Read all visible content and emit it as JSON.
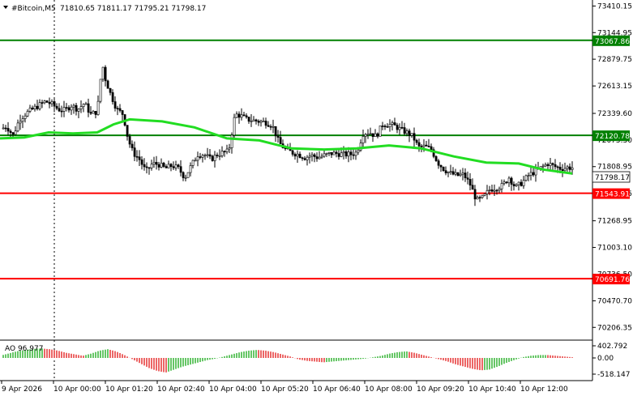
{
  "header": {
    "symbol": "#Bitcoin,M5",
    "ohlc": "71810.65 71811.17 71795.21 71798.17"
  },
  "colors": {
    "support": "#ff0000",
    "resistance": "#008000",
    "ma": "#22dd22",
    "grid": "#c8c8c8"
  },
  "levels": [
    {
      "name": "level-73067",
      "value": 73067.86,
      "label": "73067.86",
      "color": "#008000"
    },
    {
      "name": "level-72120",
      "value": 72120.78,
      "label": "72120.78",
      "color": "#008000"
    },
    {
      "name": "level-71543",
      "value": 71543.91,
      "label": "71543.91",
      "color": "#ff0000"
    },
    {
      "name": "level-70691",
      "value": 70691.76,
      "label": "70691.76",
      "color": "#ff0000"
    }
  ],
  "current_price": {
    "value": 71798.17,
    "label": "71798.17"
  },
  "ao": {
    "label": "AO 96.977",
    "ticks": [
      "402.792",
      "0.00",
      "-518.147"
    ]
  },
  "chart_data": {
    "type": "candlestick",
    "title": "#Bitcoin,M5",
    "y_ticks": [
      "73410.15",
      "73144.95",
      "72879.75",
      "72613.15",
      "72339.60",
      "72075.30",
      "71808.95",
      "71540.15",
      "71268.95",
      "71003.10",
      "70736.50",
      "70470.70",
      "70206.35"
    ],
    "ylim": [
      70160,
      73470
    ],
    "x_ticks": [
      "9 Apr 2026",
      "10 Apr 00:00",
      "10 Apr 01:20",
      "10 Apr 02:40",
      "10 Apr 04:00",
      "10 Apr 05:20",
      "10 Apr 06:40",
      "10 Apr 08:00",
      "10 Apr 09:20",
      "10 Apr 10:40",
      "10 Apr 12:00"
    ],
    "close_path": [
      [
        0,
        72180
      ],
      [
        8,
        72210
      ],
      [
        16,
        72120
      ],
      [
        24,
        72280
      ],
      [
        32,
        72340
      ],
      [
        40,
        72380
      ],
      [
        48,
        72420
      ],
      [
        56,
        72460
      ],
      [
        64,
        72430
      ],
      [
        72,
        72380
      ],
      [
        80,
        72370
      ],
      [
        88,
        72420
      ],
      [
        96,
        72380
      ],
      [
        104,
        72440
      ],
      [
        112,
        72330
      ],
      [
        120,
        72360
      ],
      [
        126,
        72840
      ],
      [
        130,
        72680
      ],
      [
        136,
        72540
      ],
      [
        144,
        72380
      ],
      [
        152,
        72330
      ],
      [
        158,
        72080
      ],
      [
        164,
        71950
      ],
      [
        172,
        71880
      ],
      [
        180,
        71760
      ],
      [
        188,
        71840
      ],
      [
        196,
        71830
      ],
      [
        204,
        71790
      ],
      [
        212,
        71820
      ],
      [
        220,
        71790
      ],
      [
        228,
        71700
      ],
      [
        236,
        71820
      ],
      [
        244,
        71930
      ],
      [
        252,
        71930
      ],
      [
        260,
        71880
      ],
      [
        268,
        71930
      ],
      [
        276,
        71950
      ],
      [
        282,
        71960
      ],
      [
        290,
        72330
      ],
      [
        296,
        72320
      ],
      [
        304,
        72280
      ],
      [
        312,
        72270
      ],
      [
        320,
        72260
      ],
      [
        328,
        72250
      ],
      [
        336,
        72220
      ],
      [
        344,
        72050
      ],
      [
        352,
        71980
      ],
      [
        360,
        71950
      ],
      [
        368,
        71930
      ],
      [
        376,
        71900
      ],
      [
        384,
        71920
      ],
      [
        392,
        71900
      ],
      [
        400,
        71920
      ],
      [
        408,
        71940
      ],
      [
        416,
        71940
      ],
      [
        424,
        71930
      ],
      [
        432,
        71930
      ],
      [
        440,
        71950
      ],
      [
        448,
        72140
      ],
      [
        456,
        72150
      ],
      [
        464,
        72110
      ],
      [
        472,
        72230
      ],
      [
        480,
        72230
      ],
      [
        488,
        72210
      ],
      [
        496,
        72170
      ],
      [
        504,
        72140
      ],
      [
        510,
        72100
      ],
      [
        516,
        72000
      ],
      [
        524,
        72010
      ],
      [
        532,
        71980
      ],
      [
        540,
        71850
      ],
      [
        548,
        71780
      ],
      [
        556,
        71740
      ],
      [
        564,
        71720
      ],
      [
        572,
        71730
      ],
      [
        580,
        71630
      ],
      [
        588,
        71470
      ],
      [
        596,
        71500
      ],
      [
        604,
        71580
      ],
      [
        612,
        71600
      ],
      [
        620,
        71620
      ],
      [
        628,
        71700
      ],
      [
        636,
        71600
      ],
      [
        644,
        71650
      ],
      [
        652,
        71720
      ],
      [
        660,
        71760
      ],
      [
        668,
        71800
      ],
      [
        676,
        71840
      ],
      [
        684,
        71810
      ],
      [
        692,
        71790
      ],
      [
        700,
        71800
      ],
      [
        706,
        71798
      ]
    ],
    "ma_path": [
      [
        0,
        72090
      ],
      [
        30,
        72100
      ],
      [
        60,
        72150
      ],
      [
        90,
        72140
      ],
      [
        120,
        72150
      ],
      [
        140,
        72230
      ],
      [
        160,
        72280
      ],
      [
        200,
        72260
      ],
      [
        240,
        72200
      ],
      [
        280,
        72090
      ],
      [
        320,
        72070
      ],
      [
        340,
        72030
      ],
      [
        360,
        71990
      ],
      [
        400,
        71980
      ],
      [
        440,
        71990
      ],
      [
        480,
        72020
      ],
      [
        520,
        71990
      ],
      [
        560,
        71910
      ],
      [
        600,
        71850
      ],
      [
        640,
        71840
      ],
      [
        670,
        71780
      ],
      [
        706,
        71740
      ]
    ],
    "ao_values": [
      0.15,
      0.3,
      0.45,
      0.55,
      0.62,
      0.65,
      0.6,
      0.5,
      0.35,
      0.25,
      0.15,
      0.3,
      0.5,
      0.6,
      0.45,
      0.2,
      -0.1,
      -0.4,
      -0.7,
      -0.9,
      -1.0,
      -0.8,
      -0.6,
      -0.45,
      -0.3,
      -0.15,
      -0.05,
      0.1,
      0.25,
      0.4,
      0.5,
      0.55,
      0.5,
      0.4,
      0.25,
      0.1,
      -0.1,
      -0.2,
      -0.25,
      -0.3,
      -0.25,
      -0.2,
      -0.15,
      -0.1,
      -0.05,
      0.05,
      0.15,
      0.3,
      0.4,
      0.45,
      0.35,
      0.2,
      0.05,
      -0.1,
      -0.25,
      -0.45,
      -0.6,
      -0.75,
      -0.85,
      -0.8,
      -0.6,
      -0.35,
      -0.15,
      0.05,
      0.15,
      0.2,
      0.2,
      0.15,
      0.1,
      0.05
    ]
  }
}
